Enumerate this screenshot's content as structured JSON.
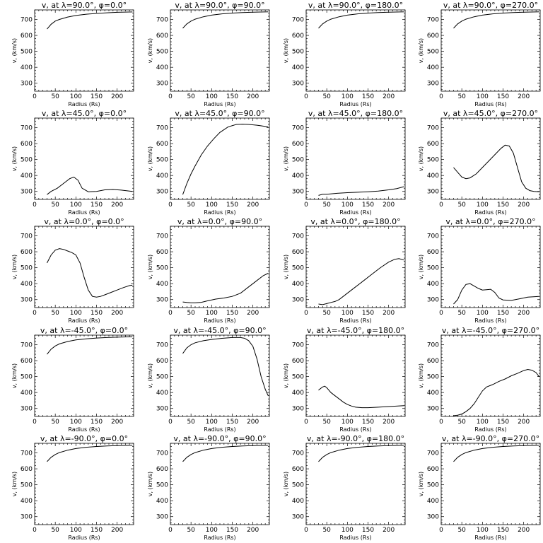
{
  "chart_data": [
    {
      "type": "line",
      "title": "v, at λ=90.0°, φ=0.0°",
      "xlabel": "Radius (Rs)",
      "ylabel": "v, (km/s)",
      "xlim": [
        0,
        240
      ],
      "ylim": [
        250,
        760
      ],
      "xticks": [
        0,
        50,
        100,
        150,
        200
      ],
      "yticks": [
        300,
        400,
        500,
        600,
        700
      ],
      "x": [
        30,
        40,
        50,
        60,
        80,
        100,
        125,
        150,
        175,
        200,
        237
      ],
      "y": [
        640,
        670,
        690,
        700,
        715,
        725,
        733,
        738,
        742,
        745,
        747
      ]
    },
    {
      "type": "line",
      "title": "v, at λ=90.0°, φ=90.0°",
      "xlabel": "Radius (Rs)",
      "ylabel": "v, (km/s)",
      "xlim": [
        0,
        240
      ],
      "ylim": [
        250,
        760
      ],
      "xticks": [
        0,
        50,
        100,
        150,
        200
      ],
      "yticks": [
        300,
        400,
        500,
        600,
        700
      ],
      "x": [
        30,
        40,
        50,
        60,
        80,
        100,
        125,
        150,
        175,
        200,
        237
      ],
      "y": [
        645,
        672,
        690,
        702,
        717,
        727,
        735,
        740,
        743,
        746,
        748
      ]
    },
    {
      "type": "line",
      "title": "v, at λ=90.0°, φ=180.0°",
      "xlabel": "Radius (Rs)",
      "ylabel": "v, (km/s)",
      "xlim": [
        0,
        240
      ],
      "ylim": [
        250,
        760
      ],
      "xticks": [
        0,
        50,
        100,
        150,
        200
      ],
      "yticks": [
        300,
        400,
        500,
        600,
        700
      ],
      "x": [
        30,
        40,
        50,
        60,
        80,
        100,
        125,
        150,
        175,
        200,
        237
      ],
      "y": [
        645,
        672,
        690,
        702,
        717,
        727,
        735,
        740,
        743,
        746,
        748
      ]
    },
    {
      "type": "line",
      "title": "v, at λ=90.0°, φ=270.0°",
      "xlabel": "Radius (Rs)",
      "ylabel": "v, (km/s)",
      "xlim": [
        0,
        240
      ],
      "ylim": [
        250,
        760
      ],
      "xticks": [
        0,
        50,
        100,
        150,
        200
      ],
      "yticks": [
        300,
        400,
        500,
        600,
        700
      ],
      "x": [
        30,
        40,
        50,
        60,
        80,
        100,
        125,
        150,
        175,
        200,
        237
      ],
      "y": [
        645,
        672,
        690,
        702,
        717,
        727,
        735,
        740,
        743,
        746,
        748
      ]
    },
    {
      "type": "line",
      "title": "v, at λ=45.0°, φ=0.0°",
      "xlabel": "Radius (Rs)",
      "ylabel": "v, (km/s)",
      "xlim": [
        0,
        240
      ],
      "ylim": [
        250,
        760
      ],
      "xticks": [
        0,
        50,
        100,
        150,
        200
      ],
      "yticks": [
        300,
        400,
        500,
        600,
        700
      ],
      "x": [
        30,
        40,
        55,
        70,
        85,
        95,
        105,
        115,
        130,
        150,
        170,
        190,
        210,
        237
      ],
      "y": [
        280,
        300,
        320,
        350,
        380,
        390,
        370,
        320,
        298,
        300,
        310,
        312,
        308,
        300
      ]
    },
    {
      "type": "line",
      "title": "v, at λ=45.0°, φ=90.0°",
      "xlabel": "Radius (Rs)",
      "ylabel": "v, (km/s)",
      "xlim": [
        0,
        240
      ],
      "ylim": [
        250,
        760
      ],
      "xticks": [
        0,
        50,
        100,
        150,
        200
      ],
      "yticks": [
        300,
        400,
        500,
        600,
        700
      ],
      "x": [
        30,
        40,
        50,
        60,
        75,
        90,
        105,
        120,
        140,
        160,
        175,
        190,
        210,
        237
      ],
      "y": [
        280,
        350,
        410,
        460,
        530,
        585,
        630,
        670,
        705,
        720,
        722,
        720,
        715,
        705
      ]
    },
    {
      "type": "line",
      "title": "v, at λ=45.0°, φ=180.0°",
      "xlabel": "Radius (Rs)",
      "ylabel": "v, (km/s)",
      "xlim": [
        0,
        240
      ],
      "ylim": [
        250,
        760
      ],
      "xticks": [
        0,
        50,
        100,
        150,
        200
      ],
      "yticks": [
        300,
        400,
        500,
        600,
        700
      ],
      "x": [
        30,
        40,
        50,
        75,
        100,
        125,
        150,
        175,
        200,
        220,
        237
      ],
      "y": [
        275,
        282,
        282,
        288,
        292,
        295,
        298,
        302,
        310,
        318,
        330
      ]
    },
    {
      "type": "line",
      "title": "v, at λ=45.0°, φ=270.0°",
      "xlabel": "Radius (Rs)",
      "ylabel": "v, (km/s)",
      "xlim": [
        0,
        240
      ],
      "ylim": [
        250,
        760
      ],
      "xticks": [
        0,
        50,
        100,
        150,
        200
      ],
      "yticks": [
        300,
        400,
        500,
        600,
        700
      ],
      "x": [
        30,
        40,
        50,
        60,
        70,
        85,
        100,
        115,
        130,
        145,
        155,
        165,
        175,
        185,
        195,
        205,
        215,
        225,
        237
      ],
      "y": [
        450,
        420,
        390,
        380,
        385,
        410,
        450,
        490,
        530,
        570,
        590,
        585,
        540,
        450,
        360,
        320,
        305,
        300,
        298
      ]
    },
    {
      "type": "line",
      "title": "v, at λ=0.0°, φ=0.0°",
      "xlabel": "Radius (Rs)",
      "ylabel": "v, (km/s)",
      "xlim": [
        0,
        240
      ],
      "ylim": [
        250,
        760
      ],
      "xticks": [
        0,
        50,
        100,
        150,
        200
      ],
      "yticks": [
        300,
        400,
        500,
        600,
        700
      ],
      "x": [
        30,
        40,
        50,
        60,
        70,
        80,
        90,
        100,
        110,
        120,
        130,
        140,
        150,
        160,
        170,
        185,
        200,
        215,
        230,
        237
      ],
      "y": [
        530,
        580,
        610,
        620,
        615,
        605,
        595,
        580,
        530,
        440,
        360,
        320,
        315,
        320,
        330,
        345,
        360,
        375,
        388,
        390
      ]
    },
    {
      "type": "line",
      "title": "v, at λ=0.0°, φ=90.0°",
      "xlabel": "Radius (Rs)",
      "ylabel": "v, (km/s)",
      "xlim": [
        0,
        240
      ],
      "ylim": [
        250,
        760
      ],
      "xticks": [
        0,
        50,
        100,
        150,
        200
      ],
      "yticks": [
        300,
        400,
        500,
        600,
        700
      ],
      "x": [
        30,
        40,
        50,
        60,
        75,
        90,
        110,
        130,
        150,
        170,
        190,
        210,
        225,
        237
      ],
      "y": [
        285,
        282,
        280,
        280,
        283,
        292,
        303,
        310,
        320,
        340,
        380,
        420,
        450,
        465
      ]
    },
    {
      "type": "line",
      "title": "v, at λ=0.0°, φ=180.0°",
      "xlabel": "Radius (Rs)",
      "ylabel": "v, (km/s)",
      "xlim": [
        0,
        240
      ],
      "ylim": [
        250,
        760
      ],
      "xticks": [
        0,
        50,
        100,
        150,
        200
      ],
      "yticks": [
        300,
        400,
        500,
        600,
        700
      ],
      "x": [
        30,
        40,
        50,
        60,
        70,
        80,
        100,
        120,
        140,
        160,
        180,
        200,
        215,
        225,
        237
      ],
      "y": [
        272,
        268,
        275,
        282,
        288,
        300,
        340,
        380,
        420,
        460,
        500,
        535,
        553,
        557,
        548
      ]
    },
    {
      "type": "line",
      "title": "v, at λ=0.0°, φ=270.0°",
      "xlabel": "Radius (Rs)",
      "ylabel": "v, (km/s)",
      "xlim": [
        0,
        240
      ],
      "ylim": [
        250,
        760
      ],
      "xticks": [
        0,
        50,
        100,
        150,
        200
      ],
      "yticks": [
        300,
        400,
        500,
        600,
        700
      ],
      "x": [
        30,
        40,
        50,
        60,
        70,
        80,
        90,
        100,
        110,
        120,
        130,
        140,
        150,
        170,
        190,
        210,
        237
      ],
      "y": [
        272,
        300,
        360,
        395,
        400,
        385,
        370,
        360,
        362,
        365,
        345,
        310,
        298,
        295,
        305,
        315,
        320
      ]
    },
    {
      "type": "line",
      "title": "v, at λ=-45.0°, φ=0.0°",
      "xlabel": "Radius (Rs)",
      "ylabel": "v, (km/s)",
      "xlim": [
        0,
        240
      ],
      "ylim": [
        250,
        760
      ],
      "xticks": [
        0,
        50,
        100,
        150,
        200
      ],
      "yticks": [
        300,
        400,
        500,
        600,
        700
      ],
      "x": [
        30,
        40,
        50,
        60,
        80,
        100,
        125,
        150,
        175,
        200,
        237
      ],
      "y": [
        640,
        672,
        692,
        705,
        720,
        730,
        737,
        742,
        745,
        747,
        750
      ]
    },
    {
      "type": "line",
      "title": "v, at λ=-45.0°, φ=90.0°",
      "xlabel": "Radius (Rs)",
      "ylabel": "v, (km/s)",
      "xlim": [
        0,
        240
      ],
      "ylim": [
        250,
        760
      ],
      "xticks": [
        0,
        50,
        100,
        150,
        200
      ],
      "yticks": [
        300,
        400,
        500,
        600,
        700
      ],
      "x": [
        30,
        40,
        50,
        60,
        80,
        100,
        125,
        150,
        170,
        180,
        190,
        200,
        210,
        220,
        230,
        237
      ],
      "y": [
        645,
        680,
        700,
        712,
        725,
        733,
        740,
        745,
        745,
        740,
        725,
        690,
        610,
        500,
        420,
        380
      ]
    },
    {
      "type": "line",
      "title": "v, at λ=-45.0°, φ=180.0°",
      "xlabel": "Radius (Rs)",
      "ylabel": "v, (km/s)",
      "xlim": [
        0,
        240
      ],
      "ylim": [
        250,
        760
      ],
      "xticks": [
        0,
        50,
        100,
        150,
        200
      ],
      "yticks": [
        300,
        400,
        500,
        600,
        700
      ],
      "x": [
        30,
        35,
        40,
        45,
        50,
        55,
        60,
        70,
        80,
        90,
        100,
        110,
        120,
        135,
        150,
        175,
        200,
        237
      ],
      "y": [
        415,
        425,
        435,
        440,
        430,
        415,
        400,
        380,
        360,
        340,
        325,
        315,
        308,
        305,
        305,
        308,
        312,
        318
      ]
    },
    {
      "type": "line",
      "title": "v, at λ=-45.0°, φ=270.0°",
      "xlabel": "Radius (Rs)",
      "ylabel": "v, (km/s)",
      "xlim": [
        0,
        240
      ],
      "ylim": [
        250,
        760
      ],
      "xticks": [
        0,
        50,
        100,
        150,
        200
      ],
      "yticks": [
        300,
        400,
        500,
        600,
        700
      ],
      "x": [
        30,
        40,
        50,
        60,
        70,
        80,
        90,
        100,
        110,
        125,
        140,
        155,
        170,
        185,
        200,
        210,
        220,
        230,
        237
      ],
      "y": [
        255,
        258,
        265,
        280,
        300,
        330,
        370,
        410,
        435,
        450,
        470,
        485,
        505,
        520,
        538,
        545,
        540,
        525,
        500
      ]
    },
    {
      "type": "line",
      "title": "v, at λ=-90.0°, φ=0.0°",
      "xlabel": "Radius (Rs)",
      "ylabel": "v, (km/s)",
      "xlim": [
        0,
        240
      ],
      "ylim": [
        250,
        760
      ],
      "xticks": [
        0,
        50,
        100,
        150,
        200
      ],
      "yticks": [
        300,
        400,
        500,
        600,
        700
      ],
      "x": [
        30,
        40,
        50,
        60,
        80,
        100,
        125,
        150,
        175,
        200,
        237
      ],
      "y": [
        645,
        672,
        690,
        702,
        717,
        727,
        735,
        740,
        743,
        746,
        748
      ]
    },
    {
      "type": "line",
      "title": "v, at λ=-90.0°, φ=90.0°",
      "xlabel": "Radius (Rs)",
      "ylabel": "v, (km/s)",
      "xlim": [
        0,
        240
      ],
      "ylim": [
        250,
        760
      ],
      "xticks": [
        0,
        50,
        100,
        150,
        200
      ],
      "yticks": [
        300,
        400,
        500,
        600,
        700
      ],
      "x": [
        30,
        40,
        50,
        60,
        80,
        100,
        125,
        150,
        175,
        200,
        237
      ],
      "y": [
        645,
        672,
        690,
        702,
        717,
        727,
        735,
        740,
        743,
        746,
        748
      ]
    },
    {
      "type": "line",
      "title": "v, at λ=-90.0°, φ=180.0°",
      "xlabel": "Radius (Rs)",
      "ylabel": "v, (km/s)",
      "xlim": [
        0,
        240
      ],
      "ylim": [
        250,
        760
      ],
      "xticks": [
        0,
        50,
        100,
        150,
        200
      ],
      "yticks": [
        300,
        400,
        500,
        600,
        700
      ],
      "x": [
        30,
        40,
        50,
        60,
        80,
        100,
        125,
        150,
        175,
        200,
        237
      ],
      "y": [
        645,
        672,
        690,
        702,
        717,
        727,
        735,
        740,
        743,
        746,
        748
      ]
    },
    {
      "type": "line",
      "title": "v, at λ=-90.0°, φ=270.0°",
      "xlabel": "Radius (Rs)",
      "ylabel": "v, (km/s)",
      "xlim": [
        0,
        240
      ],
      "ylim": [
        250,
        760
      ],
      "xticks": [
        0,
        50,
        100,
        150,
        200
      ],
      "yticks": [
        300,
        400,
        500,
        600,
        700
      ],
      "x": [
        30,
        40,
        50,
        60,
        80,
        100,
        125,
        150,
        175,
        200,
        237
      ],
      "y": [
        645,
        672,
        690,
        702,
        717,
        727,
        735,
        740,
        743,
        746,
        748
      ]
    }
  ]
}
